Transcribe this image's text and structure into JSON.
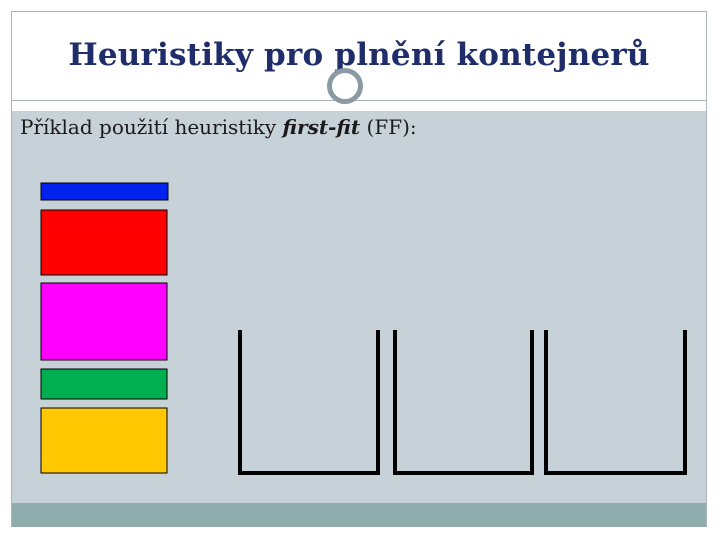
{
  "title": "Heuristiky pro plnění kontejnerů",
  "subtitle": {
    "prefix": "Příklad použití heuristiky ",
    "method": "first-fit",
    "suffix": " (FF):"
  },
  "colors": {
    "title": "#1f2d6a",
    "content_background": "#c7d1d8",
    "footer_bar": "#8fadad"
  },
  "items": [
    {
      "name": "item-blue",
      "color": "#0022ee"
    },
    {
      "name": "item-red",
      "color": "#ff0000"
    },
    {
      "name": "item-magenta",
      "color": "#ff00ff"
    },
    {
      "name": "item-green",
      "color": "#00b050"
    },
    {
      "name": "item-yellow",
      "color": "#ffc800"
    }
  ],
  "bins": [
    {
      "name": "bin-1"
    },
    {
      "name": "bin-2"
    },
    {
      "name": "bin-3"
    }
  ]
}
